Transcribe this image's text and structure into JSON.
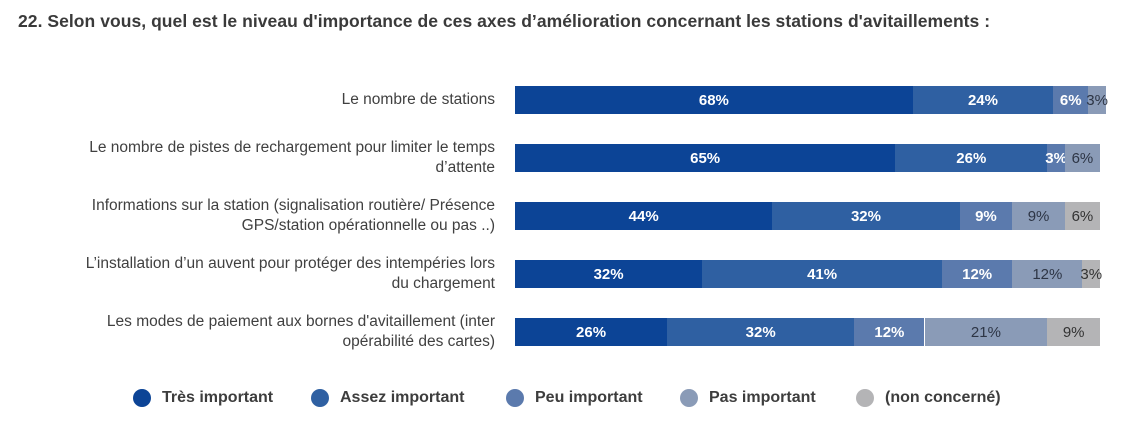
{
  "chart_data": {
    "type": "bar",
    "orientation": "horizontal",
    "stacked": true,
    "normalized": true,
    "title": "22. Selon vous, quel est le niveau d'importance de ces axes d’amélioration concernant les stations d'avitaillements :",
    "xlabel": "",
    "ylabel": "",
    "xlim": [
      0,
      100
    ],
    "grid": false,
    "legend_position": "bottom",
    "categories": [
      "Le nombre de stations",
      "Le nombre de pistes de rechargement pour limiter le temps d’attente",
      "Informations sur la station (signalisation routière/ Présence GPS/station opérationnelle ou pas ..)",
      "L’installation d’un auvent pour protéger des intempéries lors du chargement",
      "Les modes de paiement aux bornes d'avitaillement (inter opérabilité des cartes)"
    ],
    "category_lines": [
      [
        "Le nombre de stations"
      ],
      [
        "Le nombre de pistes de rechargement pour limiter le temps",
        "d’attente"
      ],
      [
        "Informations sur la station (signalisation routière/ Présence",
        "GPS/station opérationnelle ou pas ..)"
      ],
      [
        "L’installation d’un auvent pour protéger des intempéries lors",
        "du chargement"
      ],
      [
        "Les modes de paiement aux bornes d'avitaillement (inter",
        "opérabilité des cartes)"
      ]
    ],
    "series": [
      {
        "name": "Très important",
        "color": "#0c4496",
        "label_color": "#ffffff",
        "values": [
          68,
          65,
          44,
          32,
          26
        ]
      },
      {
        "name": "Assez important",
        "color": "#2f60a2",
        "label_color": "#ffffff",
        "values": [
          24,
          26,
          32,
          41,
          32
        ]
      },
      {
        "name": "Peu important",
        "color": "#5b7aad",
        "label_color": "#ffffff",
        "values": [
          6,
          3,
          9,
          12,
          12
        ]
      },
      {
        "name": "Pas important",
        "color": "#8a9bb7",
        "label_color": "#2d3545",
        "values": [
          3,
          6,
          9,
          12,
          21
        ]
      },
      {
        "name": "(non concerné)",
        "color": "#b4b4b6",
        "label_color": "#333333",
        "values": [
          0,
          0,
          6,
          3,
          9
        ]
      }
    ],
    "data_labels": [
      [
        "68%",
        "24%",
        "6%",
        "3%",
        ""
      ],
      [
        "65%",
        "26%",
        "3%",
        "6%",
        ""
      ],
      [
        "44%",
        "32%",
        "9%",
        "9%",
        "6%"
      ],
      [
        "32%",
        "41%",
        "12%",
        "12%",
        "3%"
      ],
      [
        "26%",
        "32%",
        "12%",
        "21%",
        "9%"
      ]
    ]
  }
}
